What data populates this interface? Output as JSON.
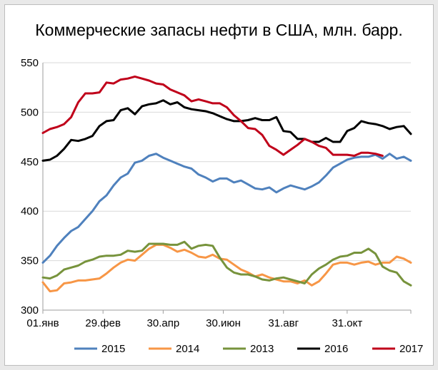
{
  "chart_data": {
    "type": "line",
    "title": "Коммерческие запасы нефти в США, млн. барр.",
    "ylim": [
      300,
      550
    ],
    "yticks": [
      300,
      350,
      400,
      450,
      500,
      550
    ],
    "xlim": [
      1,
      53
    ],
    "xticks": [
      {
        "label": "01.янв",
        "week": 1
      },
      {
        "label": "29.фев",
        "week": 9.5
      },
      {
        "label": "30.апр",
        "week": 18
      },
      {
        "label": "30.июн",
        "week": 26.5
      },
      {
        "label": "31.авг",
        "week": 35
      },
      {
        "label": "31.окт",
        "week": 44
      }
    ],
    "grid": true,
    "legend_position": "bottom",
    "series": [
      {
        "name": "2015",
        "color": "#4f81bd",
        "values": [
          348,
          355,
          365,
          373,
          380,
          384,
          392,
          400,
          410,
          416,
          426,
          434,
          438,
          449,
          451,
          456,
          458,
          454,
          451,
          448,
          445,
          443,
          437,
          434,
          430,
          433,
          433,
          429,
          431,
          427,
          423,
          422,
          424,
          419,
          423,
          426,
          424,
          422,
          425,
          429,
          436,
          444,
          448,
          452,
          454,
          455,
          455,
          457,
          453,
          458,
          453,
          455,
          451
        ]
      },
      {
        "name": "2014",
        "color": "#f79646",
        "values": [
          328,
          319,
          320,
          327,
          328,
          330,
          330,
          331,
          332,
          337,
          343,
          348,
          351,
          350,
          356,
          362,
          366,
          366,
          363,
          359,
          361,
          358,
          354,
          353,
          356,
          352,
          351,
          346,
          341,
          338,
          334,
          336,
          333,
          331,
          329,
          329,
          327,
          330,
          325,
          329,
          337,
          346,
          348,
          348,
          346,
          348,
          349,
          346,
          348,
          348,
          354,
          352,
          348
        ]
      },
      {
        "name": "2013",
        "color": "#77933c",
        "values": [
          333,
          332,
          335,
          341,
          343,
          345,
          349,
          351,
          354,
          355,
          355,
          356,
          360,
          359,
          360,
          367,
          367,
          367,
          366,
          366,
          369,
          362,
          365,
          366,
          365,
          353,
          343,
          338,
          336,
          336,
          334,
          331,
          330,
          332,
          333,
          331,
          329,
          327,
          336,
          342,
          346,
          351,
          354,
          355,
          358,
          358,
          362,
          357,
          344,
          340,
          338,
          329,
          325
        ]
      },
      {
        "name": "2016",
        "color": "#000000",
        "values": [
          451,
          452,
          456,
          463,
          472,
          471,
          473,
          476,
          486,
          491,
          492,
          502,
          504,
          498,
          506,
          508,
          509,
          512,
          508,
          510,
          505,
          503,
          502,
          501,
          499,
          496,
          493,
          491,
          491,
          492,
          494,
          492,
          492,
          495,
          481,
          480,
          473,
          473,
          470,
          470,
          474,
          470,
          470,
          481,
          484,
          491,
          489,
          488,
          486,
          483,
          485,
          486,
          478
        ]
      },
      {
        "name": "2017",
        "color": "#c0001a",
        "values": [
          479,
          483,
          485,
          488,
          495,
          510,
          519,
          519,
          520,
          530,
          529,
          533,
          534,
          536,
          534,
          532,
          529,
          528,
          523,
          520,
          517,
          511,
          513,
          511,
          509,
          509,
          505,
          497,
          491,
          484,
          483,
          477,
          466,
          462,
          457,
          462,
          467,
          473,
          470,
          466,
          464,
          457,
          457,
          457,
          456,
          459,
          459,
          458,
          456
        ]
      }
    ]
  }
}
